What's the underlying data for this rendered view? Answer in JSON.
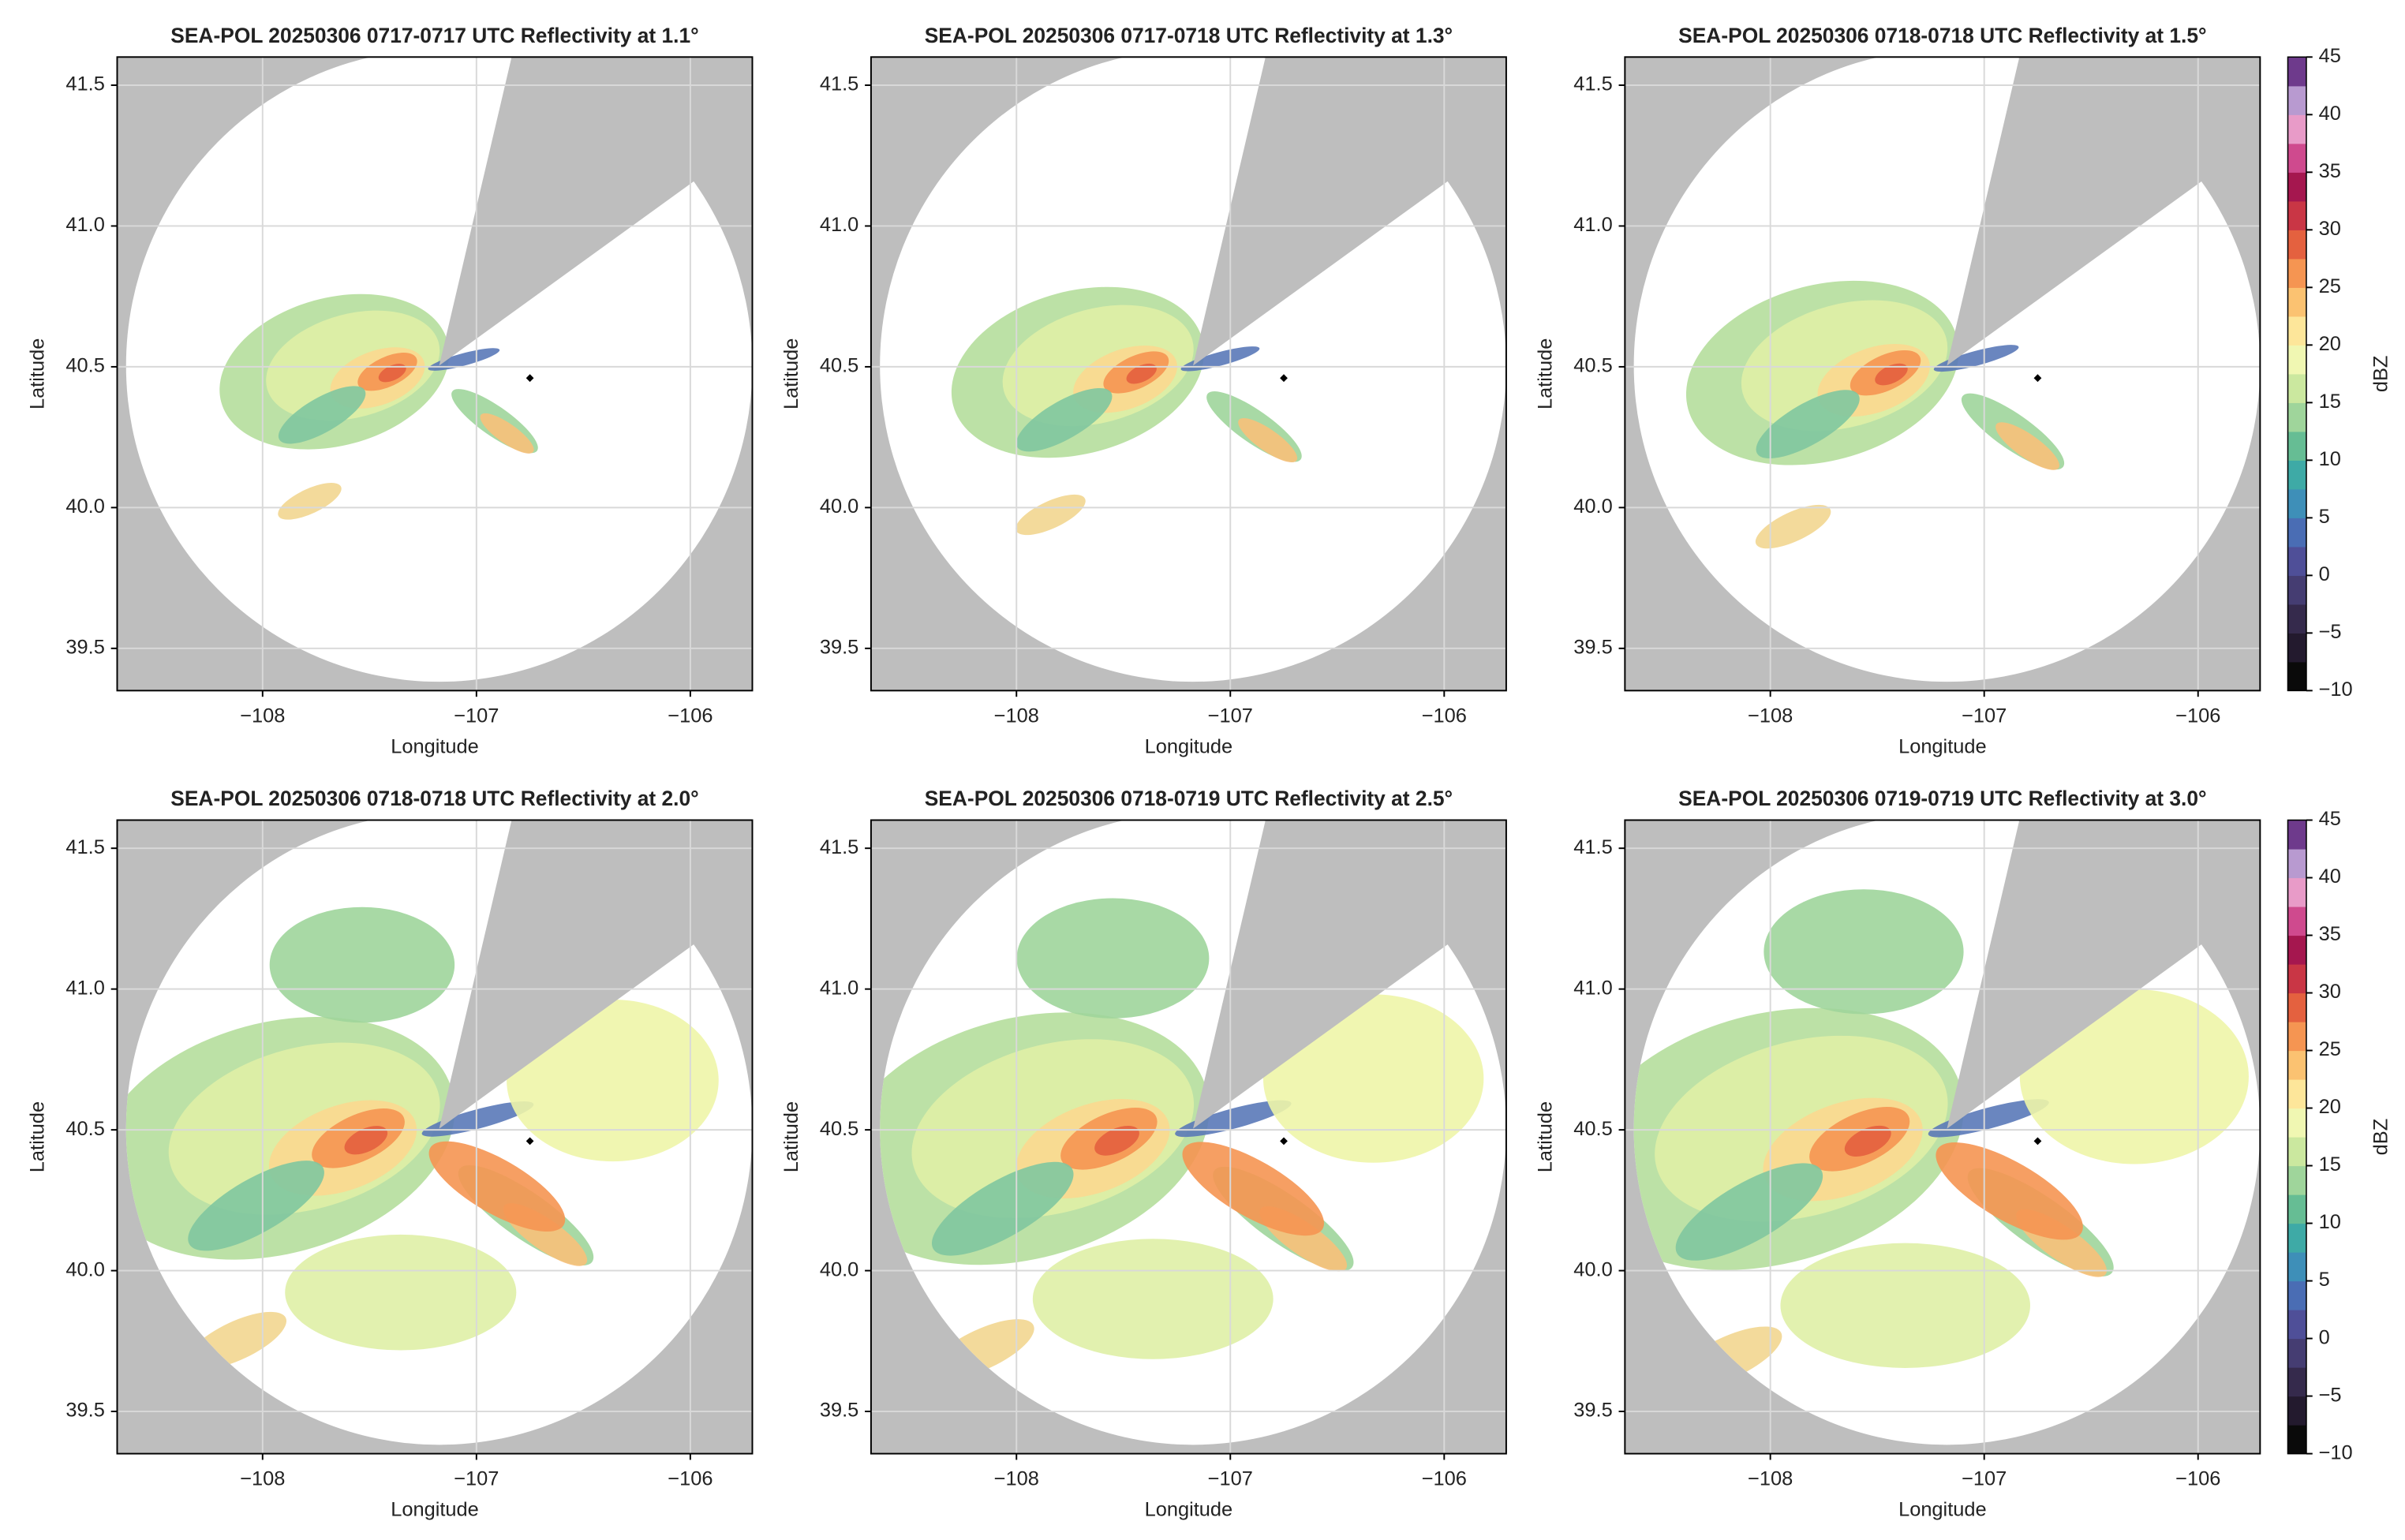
{
  "chart_data": [
    {
      "type": "radar",
      "title": "SEA-POL 20250306 0717-0717 UTC Reflectivity at 1.1°",
      "xlabel": "Longitude",
      "ylabel": "Latitude",
      "xlim": [
        -108.68,
        -105.71
      ],
      "ylim": [
        39.35,
        41.6
      ],
      "xticks": [
        {
          "value": -108,
          "label": "−108"
        },
        {
          "value": -107,
          "label": "−107"
        },
        {
          "value": -106,
          "label": "−106"
        }
      ],
      "yticks": [
        39.5,
        {
          "value": 40,
          "label": "40.0"
        },
        40.5,
        {
          "value": 41,
          "label": "41.0"
        },
        41.5
      ],
      "grid": true,
      "points": {
        "x": [
          -106.75
        ],
        "y": [
          40.46
        ]
      }
    },
    {
      "type": "radar",
      "title": "SEA-POL 20250306 0717-0718 UTC Reflectivity at 1.3°",
      "xlabel": "Longitude",
      "ylabel": "Latitude",
      "xlim": [
        -108.68,
        -105.71
      ],
      "ylim": [
        39.35,
        41.6
      ],
      "xticks": [
        {
          "value": -108,
          "label": "−108"
        },
        {
          "value": -107,
          "label": "−107"
        },
        {
          "value": -106,
          "label": "−106"
        }
      ],
      "yticks": [
        39.5,
        {
          "value": 40,
          "label": "40.0"
        },
        40.5,
        {
          "value": 41,
          "label": "41.0"
        },
        41.5
      ],
      "grid": true,
      "points": {
        "x": [
          -106.75
        ],
        "y": [
          40.46
        ]
      }
    },
    {
      "type": "radar",
      "title": "SEA-POL 20250306 0718-0718 UTC Reflectivity at 1.5°",
      "xlabel": "Longitude",
      "ylabel": "Latitude",
      "xlim": [
        -108.68,
        -105.71
      ],
      "ylim": [
        39.35,
        41.6
      ],
      "xticks": [
        {
          "value": -108,
          "label": "−108"
        },
        {
          "value": -107,
          "label": "−107"
        },
        {
          "value": -106,
          "label": "−106"
        }
      ],
      "yticks": [
        39.5,
        {
          "value": 40,
          "label": "40.0"
        },
        40.5,
        {
          "value": 41,
          "label": "41.0"
        },
        41.5
      ],
      "grid": true,
      "points": {
        "x": [
          -106.75
        ],
        "y": [
          40.46
        ]
      }
    },
    {
      "type": "radar",
      "title": "SEA-POL 20250306 0718-0718 UTC Reflectivity at 2.0°",
      "xlabel": "Longitude",
      "ylabel": "Latitude",
      "xlim": [
        -108.68,
        -105.71
      ],
      "ylim": [
        39.35,
        41.6
      ],
      "xticks": [
        {
          "value": -108,
          "label": "−108"
        },
        {
          "value": -107,
          "label": "−107"
        },
        {
          "value": -106,
          "label": "−106"
        }
      ],
      "yticks": [
        39.5,
        {
          "value": 40,
          "label": "40.0"
        },
        40.5,
        {
          "value": 41,
          "label": "41.0"
        },
        41.5
      ],
      "grid": true,
      "points": {
        "x": [
          -106.75
        ],
        "y": [
          40.46
        ]
      }
    },
    {
      "type": "radar",
      "title": "SEA-POL 20250306 0718-0719 UTC Reflectivity at 2.5°",
      "xlabel": "Longitude",
      "ylabel": "Latitude",
      "xlim": [
        -108.68,
        -105.71
      ],
      "ylim": [
        39.35,
        41.6
      ],
      "xticks": [
        {
          "value": -108,
          "label": "−108"
        },
        {
          "value": -107,
          "label": "−107"
        },
        {
          "value": -106,
          "label": "−106"
        }
      ],
      "yticks": [
        39.5,
        {
          "value": 40,
          "label": "40.0"
        },
        40.5,
        {
          "value": 41,
          "label": "41.0"
        },
        41.5
      ],
      "grid": true,
      "points": {
        "x": [
          -106.75
        ],
        "y": [
          40.46
        ]
      }
    },
    {
      "type": "radar",
      "title": "SEA-POL 20250306 0719-0719 UTC Reflectivity at 3.0°",
      "xlabel": "Longitude",
      "ylabel": "Latitude",
      "xlim": [
        -108.68,
        -105.71
      ],
      "ylim": [
        39.35,
        41.6
      ],
      "xticks": [
        {
          "value": -108,
          "label": "−108"
        },
        {
          "value": -107,
          "label": "−107"
        },
        {
          "value": -106,
          "label": "−106"
        }
      ],
      "yticks": [
        39.5,
        {
          "value": 40,
          "label": "40.0"
        },
        40.5,
        {
          "value": 41,
          "label": "41.0"
        },
        41.5
      ],
      "grid": true,
      "points": {
        "x": [
          -106.75
        ],
        "y": [
          40.46
        ]
      }
    }
  ],
  "colorbar": {
    "label": "dBZ",
    "lim": [
      -10,
      45
    ],
    "ticks": [
      {
        "value": -10,
        "label": "−10"
      },
      {
        "value": -5,
        "label": "−5"
      },
      0,
      5,
      10,
      15,
      20,
      25,
      30,
      35,
      40,
      45
    ],
    "colors": [
      "#0a0a0a",
      "#231a2e",
      "#352a4c",
      "#453d72",
      "#4f4f98",
      "#4a6db4",
      "#3e8fb8",
      "#3eaaa6",
      "#66bd94",
      "#9fd59b",
      "#cbe89f",
      "#f0f7b2",
      "#fde69a",
      "#fbc271",
      "#f59552",
      "#e4613f",
      "#c93645",
      "#a5174f",
      "#cf4a8e",
      "#e89bc8",
      "#b89ad0",
      "#6e3a8c"
    ]
  }
}
